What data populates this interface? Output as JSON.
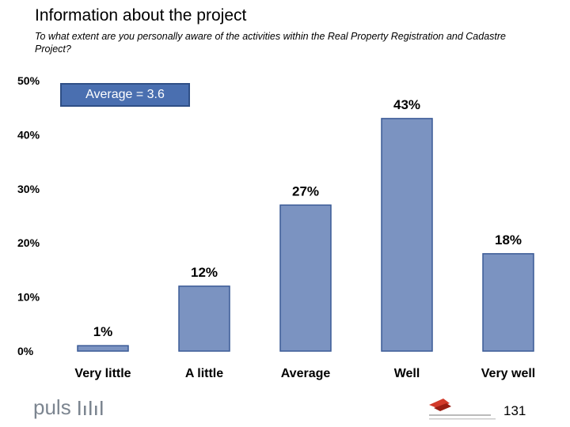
{
  "header": {
    "title": "Information about the project",
    "subtitle": "To what extent are you personally aware of the activities within the Real Property Registration and Cadastre Project?"
  },
  "average_label": "Average = 3.6",
  "footer": {
    "brand": "puls",
    "page_number": "131"
  },
  "colors": {
    "bar": "#7b93c1",
    "bar_outline": "#3a5a96",
    "badge": "#4a6fb0"
  },
  "chart_data": {
    "type": "bar",
    "categories": [
      "Very little",
      "A little",
      "Average",
      "Well",
      "Very well"
    ],
    "values": [
      1,
      12,
      27,
      43,
      18
    ],
    "data_labels": [
      "1%",
      "12%",
      "27%",
      "43%",
      "18%"
    ],
    "yticks": [
      "0%",
      "10%",
      "20%",
      "30%",
      "40%",
      "50%"
    ],
    "ylim": [
      0,
      50
    ],
    "grid": false,
    "legend": "none"
  }
}
